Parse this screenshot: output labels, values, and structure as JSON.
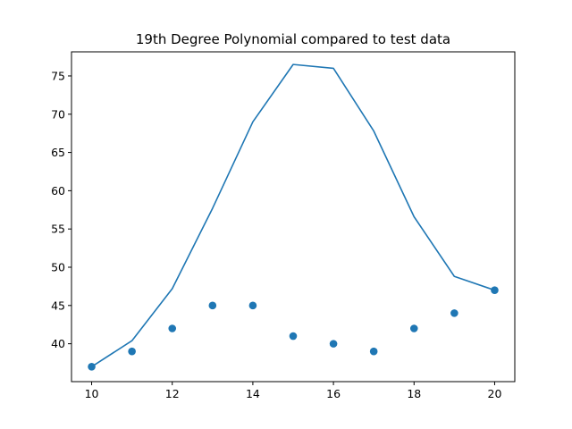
{
  "chart_data": {
    "type": "line",
    "title": "19th Degree Polynomial compared to test data",
    "xlabel": "",
    "ylabel": "",
    "xlim": [
      9.5,
      20.5
    ],
    "ylim": [
      35.05,
      78.15
    ],
    "x_ticks": [
      10,
      12,
      14,
      16,
      18,
      20
    ],
    "y_ticks": [
      40,
      45,
      50,
      55,
      60,
      65,
      70,
      75
    ],
    "grid": false,
    "legend": "none",
    "color": "#1f77b4",
    "series": [
      {
        "kind": "line",
        "x": [
          10,
          11,
          12,
          13,
          14,
          15,
          16,
          17,
          18,
          19,
          20
        ],
        "y": [
          37.0,
          40.4,
          47.2,
          57.7,
          69.0,
          76.5,
          76.0,
          67.8,
          56.6,
          48.8,
          47.0
        ]
      },
      {
        "kind": "scatter",
        "x": [
          10,
          11,
          12,
          13,
          14,
          15,
          16,
          17,
          18,
          19,
          20
        ],
        "y": [
          37,
          39,
          42,
          45,
          45,
          41,
          40,
          39,
          42,
          44,
          47
        ]
      }
    ]
  }
}
